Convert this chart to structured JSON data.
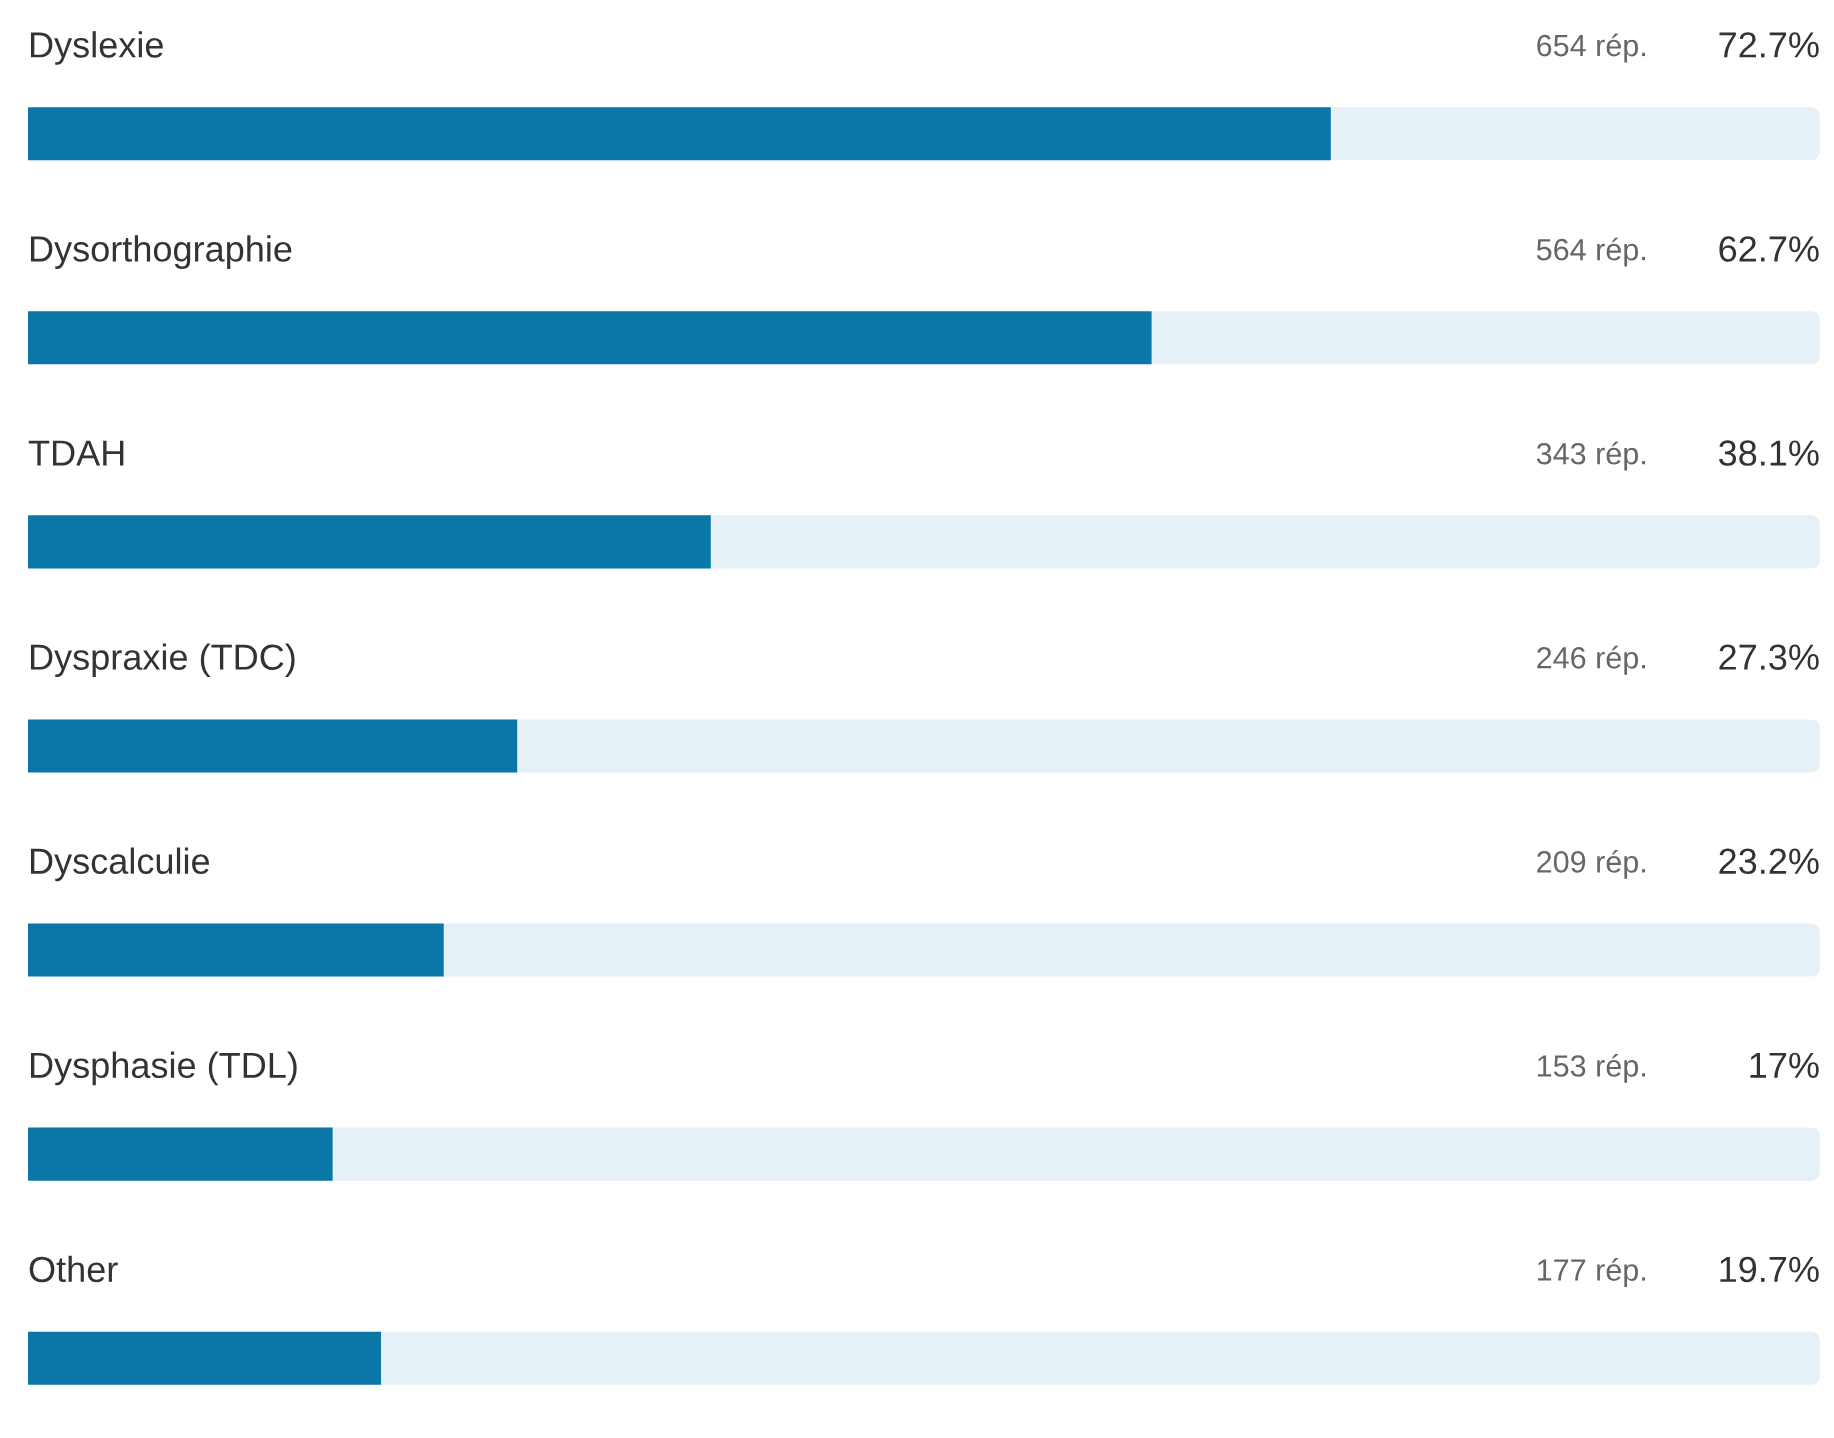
{
  "chart_data": {
    "type": "bar",
    "orientation": "horizontal",
    "categories": [
      "Dyslexie",
      "Dysorthographie",
      "TDAH",
      "Dyspraxie (TDC)",
      "Dyscalculie",
      "Dysphasie (TDL)",
      "Other"
    ],
    "values": [
      72.7,
      62.7,
      38.1,
      27.3,
      23.2,
      17,
      19.7
    ],
    "value_labels": [
      "72.7%",
      "62.7%",
      "38.1%",
      "27.3%",
      "23.2%",
      "17%",
      "19.7%"
    ],
    "annotations": [
      "654 rép.",
      "564 rép.",
      "343 rép.",
      "246 rép.",
      "209 rép.",
      "153 rép.",
      "177 rép."
    ],
    "color": "#0a77a6",
    "xlim": [
      0,
      100
    ]
  }
}
